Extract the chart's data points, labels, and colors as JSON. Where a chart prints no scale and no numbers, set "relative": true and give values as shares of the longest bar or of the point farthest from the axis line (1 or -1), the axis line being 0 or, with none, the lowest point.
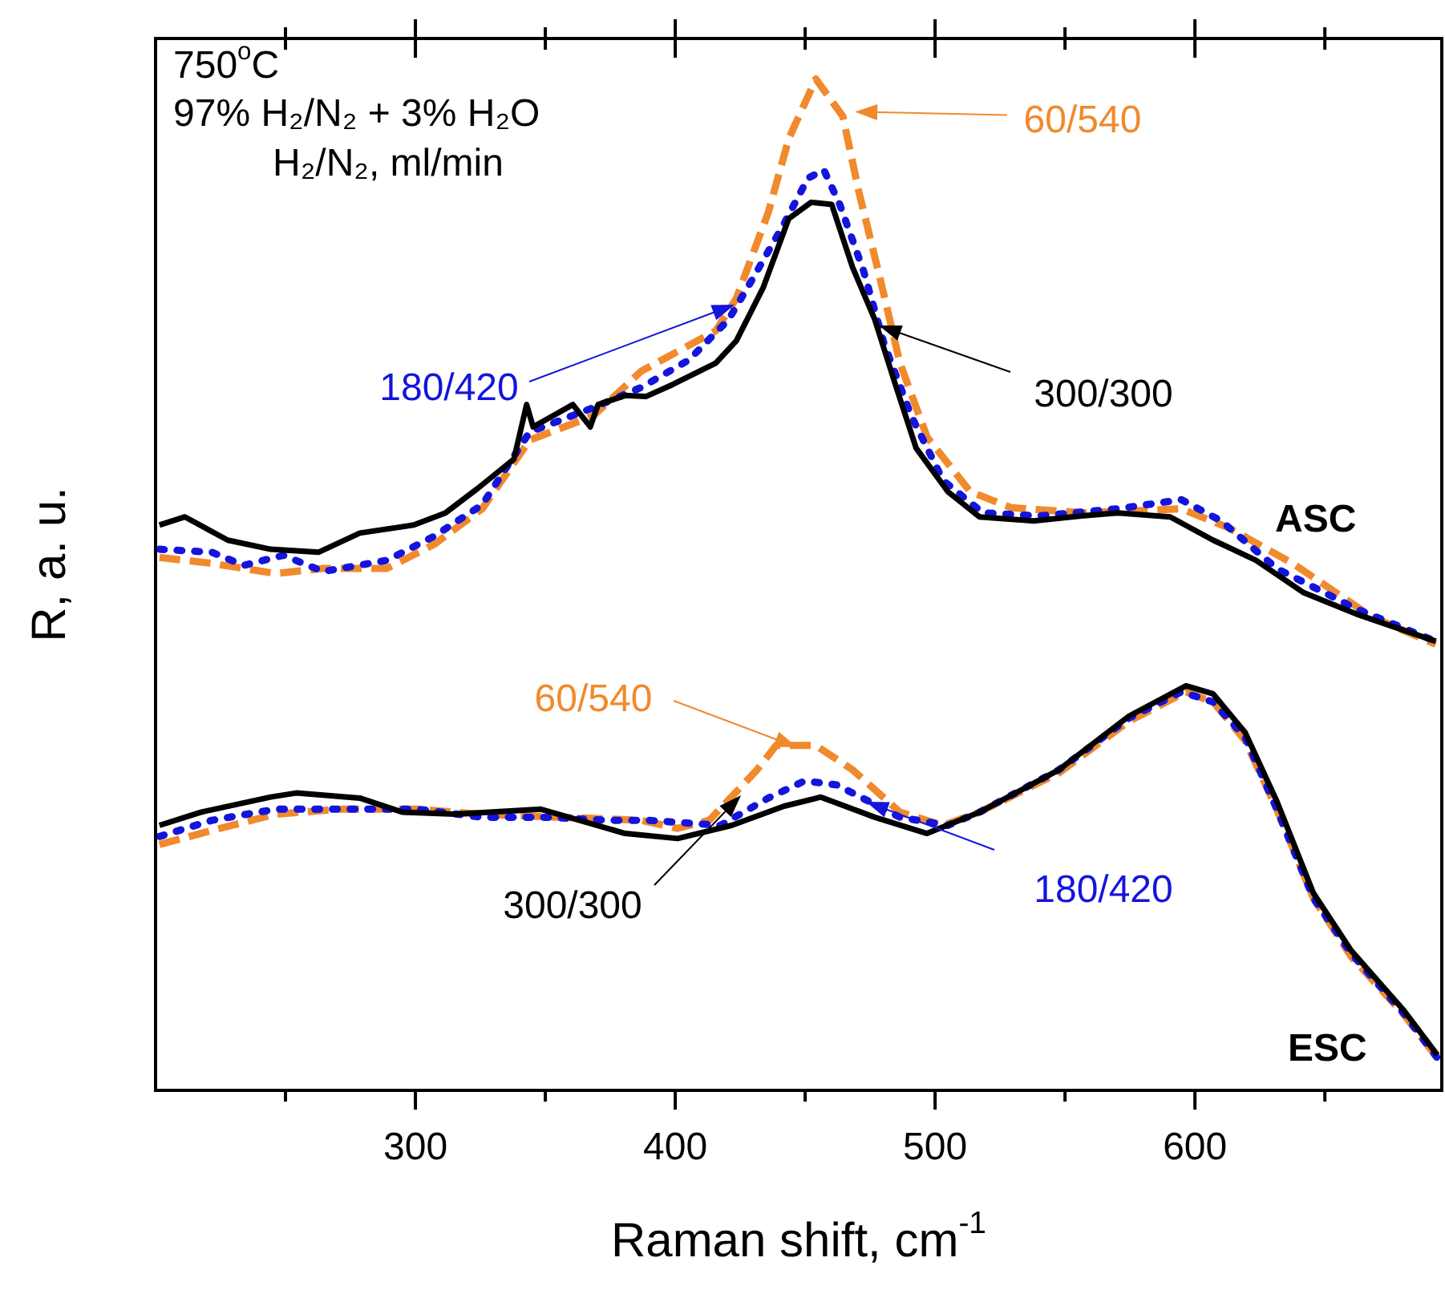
{
  "chart_data": {
    "type": "line",
    "relative": true,
    "xlabel": "Raman shift, cm$^{-1}$",
    "ylabel": "R, a. u.",
    "xlim": [
      200,
      695
    ],
    "xticks": [
      {
        "value": 250,
        "label": null
      },
      300,
      {
        "value": 350,
        "label": null
      },
      400,
      {
        "value": 450,
        "label": null
      },
      500,
      {
        "value": 550,
        "label": null
      },
      600,
      {
        "value": 650,
        "label": null
      }
    ],
    "marker": "none",
    "legend": false,
    "series": [
      {
        "color": "#000000",
        "line_style": "solid",
        "x": [
          201.5,
          211.3,
          227.8,
          244.3,
          262.7,
          278.6,
          299.4,
          311.6,
          323.9,
          337.9,
          342.8,
          345.3,
          360.6,
          367.3,
          370.3,
          380.7,
          388.7,
          399.1,
          415.6,
          423.5,
          433.9,
          443.7,
          452.3,
          460.2,
          468.2,
          476.8,
          484.7,
          492.7,
          504.9,
          517.1,
          537.9,
          556.3,
          570.3,
          590.5,
          607.0,
          623.5,
          641.9,
          662.1,
          692.7
        ],
        "values": [
          0.559,
          0.567,
          0.544,
          0.535,
          0.532,
          0.551,
          0.559,
          0.571,
          0.595,
          0.624,
          0.678,
          0.656,
          0.678,
          0.656,
          0.678,
          0.687,
          0.686,
          0.698,
          0.719,
          0.741,
          0.794,
          0.862,
          0.878,
          0.876,
          0.814,
          0.762,
          0.698,
          0.635,
          0.592,
          0.567,
          0.563,
          0.568,
          0.571,
          0.567,
          0.544,
          0.524,
          0.492,
          0.471,
          0.444
        ]
      },
      {
        "color": "#1414dc",
        "line_style": "dotted",
        "x": [
          201.5,
          221.7,
          233.9,
          249.2,
          264.5,
          289,
          307.3,
          325.7,
          344,
          368.5,
          386.9,
          405.2,
          420.5,
          429.7,
          441.9,
          451.1,
          457.2,
          463.3,
          472.5,
          480.4,
          490.8,
          503.1,
          518.4,
          539.8,
          570.3,
          594.8,
          610.1,
          631.5,
          662.1,
          692.7
        ],
        "values": [
          0.535,
          0.532,
          0.519,
          0.529,
          0.513,
          0.524,
          0.548,
          0.579,
          0.651,
          0.675,
          0.695,
          0.722,
          0.762,
          0.802,
          0.857,
          0.902,
          0.91,
          0.876,
          0.81,
          0.738,
          0.667,
          0.603,
          0.571,
          0.568,
          0.575,
          0.584,
          0.563,
          0.516,
          0.476,
          0.444
        ]
      },
      {
        "color": "#f08a2c",
        "line_style": "dashed",
        "x": [
          201.5,
          221.7,
          246.2,
          264.5,
          289,
          307.3,
          325.7,
          344,
          368.5,
          386.9,
          415.6,
          423.5,
          435.8,
          443.7,
          454.1,
          464.5,
          470.6,
          478.6,
          486.5,
          496.9,
          513.5,
          529.4,
          558.1,
          594.8,
          613.1,
          637.6,
          668.2,
          692.7
        ],
        "values": [
          0.527,
          0.521,
          0.511,
          0.516,
          0.516,
          0.54,
          0.575,
          0.643,
          0.667,
          0.711,
          0.751,
          0.783,
          0.868,
          0.941,
          1,
          0.963,
          0.889,
          0.805,
          0.719,
          0.646,
          0.592,
          0.576,
          0.571,
          0.575,
          0.556,
          0.521,
          0.468,
          0.441
        ]
      },
      {
        "color": "#000000",
        "line_style": "solid",
        "x": [
          201.5,
          217.4,
          244.3,
          254.1,
          278.6,
          295.1,
          315.3,
          348.3,
          380.7,
          400.9,
          421.7,
          441.9,
          456.0,
          476.8,
          496.9,
          517.1,
          547.7,
          574.6,
          596.6,
          607.0,
          619.3,
          631.5,
          645.6,
          660.2,
          680.4,
          693.3
        ],
        "values": [
          0.262,
          0.275,
          0.29,
          0.294,
          0.289,
          0.275,
          0.273,
          0.278,
          0.254,
          0.249,
          0.262,
          0.281,
          0.29,
          0.27,
          0.254,
          0.275,
          0.317,
          0.37,
          0.4,
          0.392,
          0.354,
          0.286,
          0.195,
          0.138,
          0.079,
          0.035
        ]
      },
      {
        "color": "#1414dc",
        "line_style": "dotted",
        "x": [
          201.5,
          221.7,
          246.2,
          270.6,
          301.2,
          325.7,
          350.2,
          374.6,
          389.9,
          417.4,
          435.8,
          449.8,
          462.1,
          486.5,
          504.9,
          517.1,
          547.7,
          574.6,
          594.8,
          607.0,
          619.3,
          631.5,
          645.6,
          660.2,
          680.4,
          693.3
        ],
        "values": [
          0.251,
          0.267,
          0.278,
          0.278,
          0.278,
          0.27,
          0.27,
          0.267,
          0.267,
          0.262,
          0.289,
          0.306,
          0.302,
          0.27,
          0.262,
          0.275,
          0.317,
          0.368,
          0.394,
          0.384,
          0.349,
          0.278,
          0.19,
          0.135,
          0.076,
          0.032
        ]
      },
      {
        "color": "#f08a2c",
        "line_style": "dashed",
        "x": [
          201.5,
          221.7,
          246.2,
          270.6,
          301.2,
          325.7,
          356.3,
          386.9,
          400.9,
          413.1,
          431.5,
          438.8,
          454.1,
          468.2,
          486.5,
          503.1,
          517.1,
          547.7,
          574.6,
          596.6,
          607.0,
          619.3,
          631.5,
          645.6,
          660.2,
          680.4,
          693.3
        ],
        "values": [
          0.243,
          0.257,
          0.273,
          0.278,
          0.278,
          0.273,
          0.27,
          0.267,
          0.259,
          0.267,
          0.317,
          0.341,
          0.341,
          0.317,
          0.275,
          0.262,
          0.275,
          0.314,
          0.365,
          0.394,
          0.384,
          0.346,
          0.278,
          0.19,
          0.132,
          0.075,
          0.032
        ]
      }
    ],
    "annotations": [
      "750$^{o}$C",
      "97% H₂/N₂ + 3% H₂O",
      "H₂/N₂, ml/min",
      "ASC",
      "ESC",
      "60/540",
      "180/420",
      "300/300",
      "60/540",
      "300/300",
      "180/420"
    ]
  }
}
